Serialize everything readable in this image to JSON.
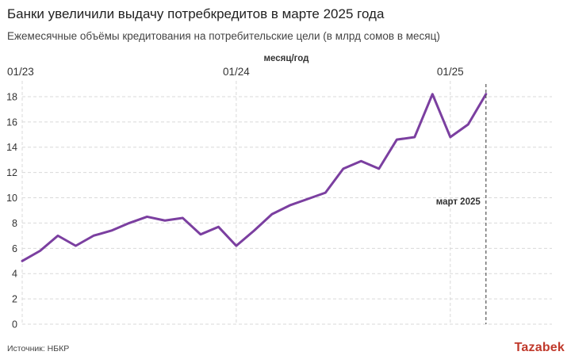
{
  "title": "Банки увеличили выдачу потребкредитов в марте 2025 года",
  "subtitle": "Ежемесячные объёмы кредитования на потребительские цели (в млрд сомов в месяц)",
  "source": "Источник: НБКР",
  "logo": "Tazabek",
  "chart_data": {
    "type": "line",
    "title": "Банки увеличили выдачу потребкредитов в марте 2025 года",
    "subtitle": "Ежемесячные объёмы кредитования на потребительские цели (в млрд сомов в месяц)",
    "xlabel": "месяц/год",
    "ylabel": "",
    "ylim": [
      0,
      19
    ],
    "yticks": [
      0,
      2,
      4,
      6,
      8,
      10,
      12,
      14,
      16,
      18
    ],
    "xticks": [
      {
        "month": 0,
        "label": "01/23"
      },
      {
        "month": 12,
        "label": "01/24"
      },
      {
        "month": 24,
        "label": "01/25"
      }
    ],
    "x_months_since_jan_2023": [
      0,
      1,
      2,
      3,
      4,
      5,
      6,
      7,
      8,
      9,
      10,
      11,
      12,
      13,
      14,
      15,
      16,
      17,
      18,
      19,
      20,
      21,
      22,
      23,
      24,
      25,
      26
    ],
    "series": [
      {
        "name": "",
        "color": "#7b3fa0",
        "values": [
          5.0,
          5.8,
          7.0,
          6.2,
          7.0,
          7.4,
          8.0,
          8.5,
          8.2,
          8.4,
          7.1,
          7.7,
          6.2,
          7.4,
          8.7,
          9.4,
          9.9,
          10.4,
          12.3,
          12.9,
          12.3,
          14.6,
          14.8,
          18.2,
          14.8,
          15.8,
          18.2
        ]
      }
    ],
    "annotation": {
      "label": "март 2025",
      "month": 26
    },
    "grid": true,
    "legend": "none"
  }
}
